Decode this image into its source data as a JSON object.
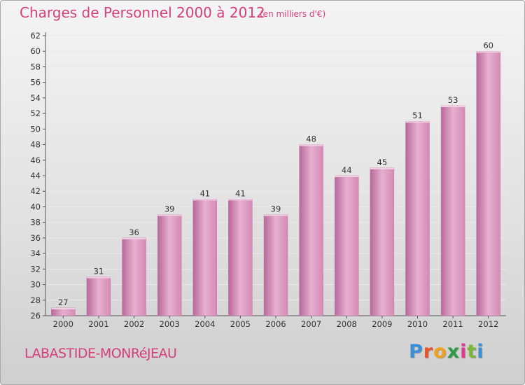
{
  "title": "Charges de Personnel 2000 à 2012",
  "subtitle": "(en milliers d'€)",
  "commune": "LABASTIDE-MONRéJEAU",
  "logo": {
    "text": "Proxiti",
    "letter_colors": [
      "#3a8fd6",
      "#e8542a",
      "#f0a021",
      "#2e9a48",
      "#e03a8c",
      "#7ab83a",
      "#3a8fd6"
    ]
  },
  "colors": {
    "bar": "#d48ab4",
    "bar_light": "#e6b0d0",
    "bar_dark": "#b8689a",
    "title": "#d4407c"
  },
  "chart_data": {
    "type": "bar",
    "title": "Charges de Personnel 2000 à 2012",
    "subtitle": "(en milliers d'€)",
    "categories": [
      "2000",
      "2001",
      "2002",
      "2003",
      "2004",
      "2005",
      "2006",
      "2007",
      "2008",
      "2009",
      "2010",
      "2011",
      "2012"
    ],
    "values": [
      27,
      31,
      36,
      39,
      41,
      41,
      39,
      48,
      44,
      45,
      51,
      53,
      60
    ],
    "ylim": [
      26,
      62
    ],
    "yticks": [
      26,
      28,
      30,
      32,
      34,
      36,
      38,
      40,
      42,
      44,
      46,
      48,
      50,
      52,
      54,
      56,
      58,
      60,
      62
    ],
    "grid": true,
    "xlabel": "",
    "ylabel": ""
  }
}
